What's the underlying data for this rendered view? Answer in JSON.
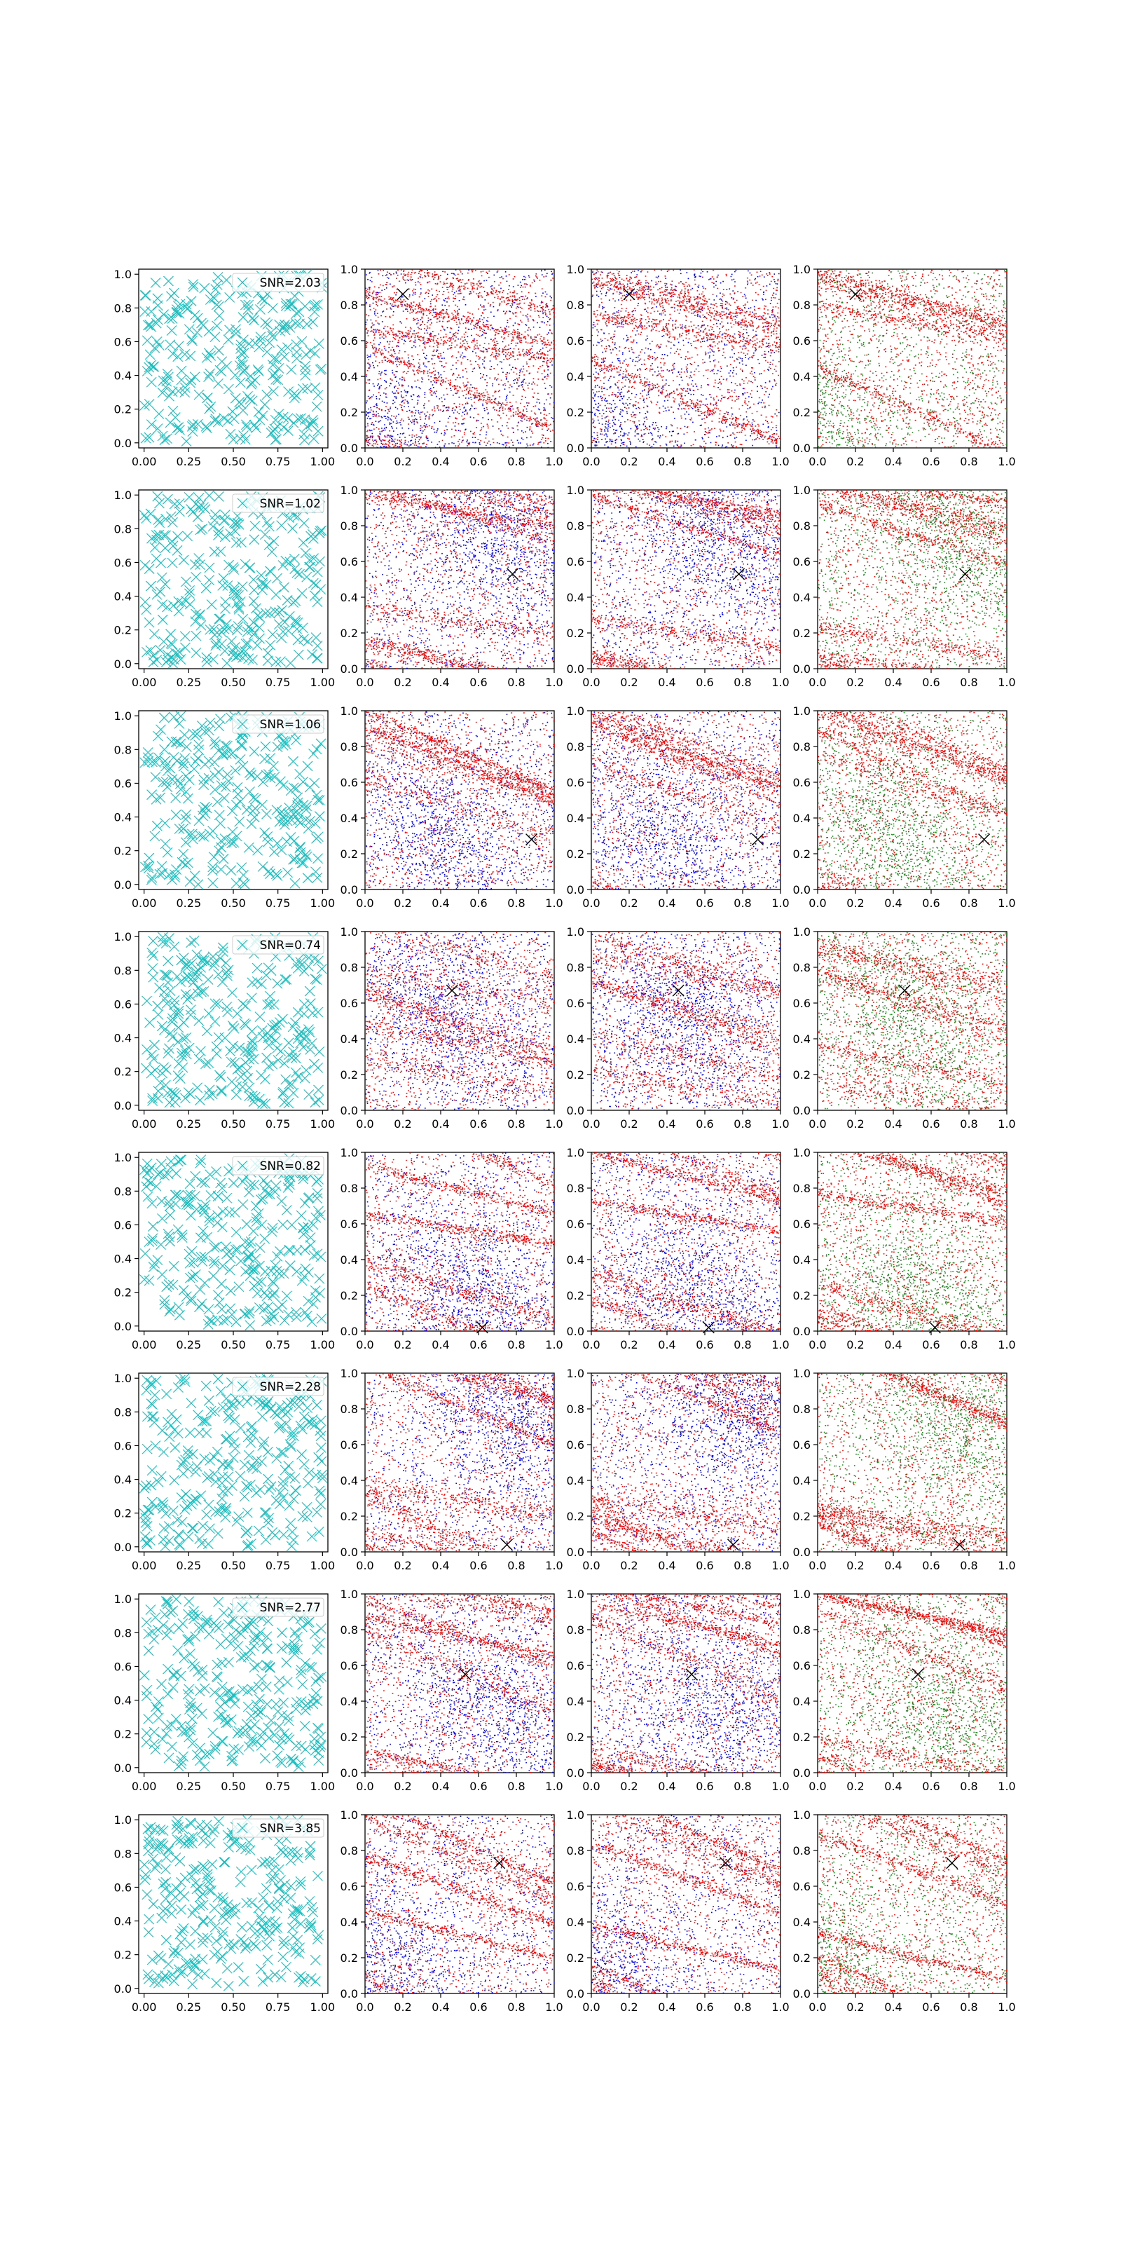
{
  "figure": {
    "rows": 8,
    "cols": 4,
    "colors": {
      "cross": "#17bfbf",
      "signal": "#ff0000",
      "noise": "#0000ff",
      "noise_alt": "#228b22",
      "marker": "#000000"
    }
  },
  "chart_data": [
    {
      "type": "grid-of-scatter",
      "axis_ranges": {
        "cross_panel": {
          "xlim": [
            -0.03,
            1.03
          ],
          "ylim": [
            -0.03,
            1.03
          ]
        },
        "density_panel": {
          "xlim": [
            0,
            1
          ],
          "ylim": [
            0,
            1
          ]
        }
      },
      "ticks": {
        "cross_x": [
          "0.00",
          "0.25",
          "0.50",
          "0.75",
          "1.00"
        ],
        "cross_y": [
          "0.0",
          "0.2",
          "0.4",
          "0.6",
          "0.8",
          "1.0"
        ],
        "density_x": [
          "0.0",
          "0.2",
          "0.4",
          "0.6",
          "0.8",
          "1.0"
        ],
        "density_y": [
          "0.0",
          "0.2",
          "0.4",
          "0.6",
          "0.8",
          "1.0"
        ]
      },
      "grid": false,
      "legend_position": "upper-right",
      "panel_series": [
        {
          "col": 1,
          "marker": "x",
          "color": "cross"
        },
        {
          "col": 2,
          "points": [
            "signal",
            "noise"
          ]
        },
        {
          "col": 3,
          "points": [
            "signal",
            "noise"
          ]
        },
        {
          "col": 4,
          "points": [
            "signal",
            "noise_alt"
          ]
        }
      ],
      "rows": [
        {
          "legend": "SNR=2.03",
          "marker_x": 0.2,
          "marker_y": 0.86
        },
        {
          "legend": "SNR=1.02",
          "marker_x": 0.78,
          "marker_y": 0.53
        },
        {
          "legend": "SNR=1.06",
          "marker_x": 0.88,
          "marker_y": 0.28
        },
        {
          "legend": "SNR=0.74",
          "marker_x": 0.46,
          "marker_y": 0.67
        },
        {
          "legend": "SNR=0.82",
          "marker_x": 0.62,
          "marker_y": 0.02
        },
        {
          "legend": "SNR=2.28",
          "marker_x": 0.75,
          "marker_y": 0.04
        },
        {
          "legend": "SNR=2.77",
          "marker_x": 0.53,
          "marker_y": 0.55
        },
        {
          "legend": "SNR=3.85",
          "marker_x": 0.71,
          "marker_y": 0.73
        }
      ]
    }
  ]
}
